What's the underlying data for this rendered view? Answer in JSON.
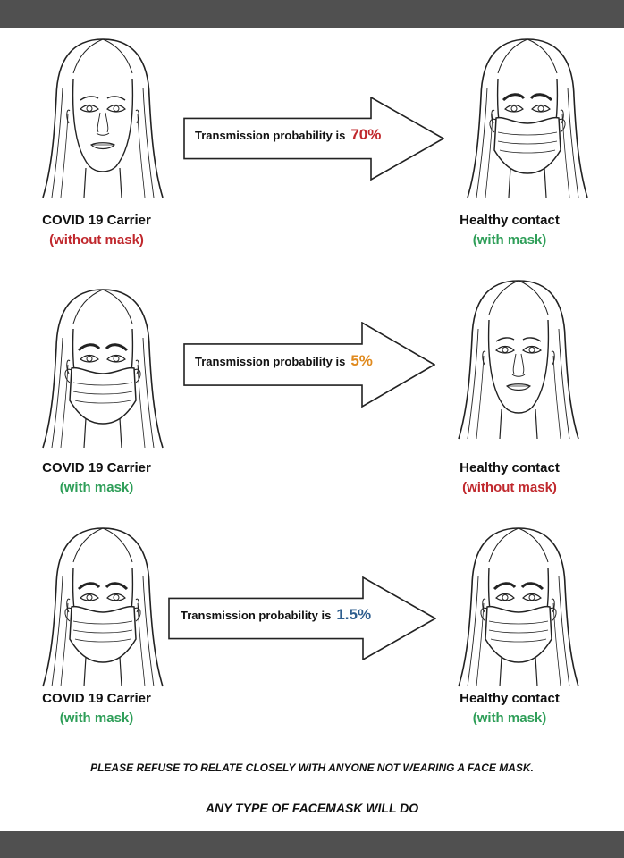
{
  "colors": {
    "red": "#c0282d",
    "green": "#2e9e58",
    "orange": "#e08a1e",
    "blue": "#2e5e8e",
    "frame": "#505050"
  },
  "rows": [
    {
      "arrow_text": "Transmission probability is",
      "probability": "70%",
      "probability_color": "#c0282d",
      "carrier": {
        "role": "COVID 19 Carrier",
        "state": "(without mask)",
        "state_color": "#c0282d",
        "masked": false
      },
      "contact": {
        "role": "Healthy contact",
        "state": "(with mask)",
        "state_color": "#2e9e58",
        "masked": true
      }
    },
    {
      "arrow_text": "Transmission probability is",
      "probability": "5%",
      "probability_color": "#e08a1e",
      "carrier": {
        "role": "COVID 19 Carrier",
        "state": "(with mask)",
        "state_color": "#2e9e58",
        "masked": true
      },
      "contact": {
        "role": "Healthy contact",
        "state": "(without mask)",
        "state_color": "#c0282d",
        "masked": false
      }
    },
    {
      "arrow_text": "Transmission probability is",
      "probability": "1.5%",
      "probability_color": "#2e5e8e",
      "carrier": {
        "role": "COVID 19 Carrier",
        "state": "(with mask)",
        "state_color": "#2e9e58",
        "masked": true
      },
      "contact": {
        "role": "Healthy contact",
        "state": "(with mask)",
        "state_color": "#2e9e58",
        "masked": true
      }
    }
  ],
  "footer": {
    "line1": "PLEASE REFUSE TO RELATE CLOSELY WITH ANYONE NOT WEARING A FACE MASK.",
    "line2": "ANY TYPE OF FACEMASK WILL DO"
  }
}
